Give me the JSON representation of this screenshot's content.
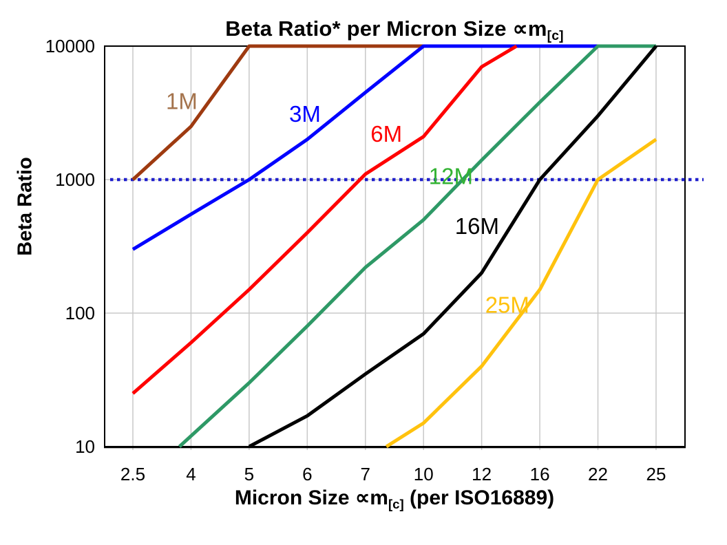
{
  "chart_data": {
    "type": "line",
    "title": {
      "main": "Beta Ratio* per Micron Size ∝m",
      "sub": "[c]"
    },
    "xlabel": {
      "pre": "Micron Size ∝m",
      "sub": "[c]",
      "post": " (per ISO16889)"
    },
    "ylabel": "Beta Ratio",
    "x_categories": [
      "2.5",
      "4",
      "5",
      "6",
      "7",
      "10",
      "12",
      "16",
      "22",
      "25"
    ],
    "y_scale": "log",
    "ylim": [
      10,
      10000
    ],
    "y_ticks": [
      10,
      100,
      1000,
      10000
    ],
    "grid": {
      "color": "#C8C8C8",
      "vertical": true,
      "horizontal_decades": [
        100,
        1000
      ]
    },
    "axis_color": "#000000",
    "reference_line": {
      "value": 1000,
      "color": "#2020CC",
      "style": "dotted"
    },
    "legend_position": "inline-labels",
    "series": [
      {
        "name": "1M",
        "color": "#9E3A10",
        "label_color": "#A4734C",
        "label_at": {
          "x": 0.84,
          "value": 3870
        },
        "points": [
          [
            0,
            1000
          ],
          [
            1,
            2500
          ],
          [
            2,
            10000
          ],
          [
            3,
            10000
          ],
          [
            4,
            10000
          ],
          [
            5,
            10000
          ]
        ]
      },
      {
        "name": "3M",
        "color": "#0000FF",
        "label_color": "#0000FF",
        "label_at": {
          "x": 2.96,
          "value": 3100
        },
        "points": [
          [
            0,
            300
          ],
          [
            1,
            550
          ],
          [
            2,
            1000
          ],
          [
            3,
            2000
          ],
          [
            4,
            4500
          ],
          [
            5,
            10000
          ],
          [
            6,
            10000
          ],
          [
            7,
            10000
          ],
          [
            8,
            10000
          ]
        ]
      },
      {
        "name": "6M",
        "color": "#FF0000",
        "label_color": "#FF0000",
        "label_at": {
          "x": 4.36,
          "value": 2200
        },
        "points": [
          [
            0,
            25
          ],
          [
            1,
            60
          ],
          [
            2,
            150
          ],
          [
            3,
            400
          ],
          [
            4,
            1100
          ],
          [
            5,
            2100
          ],
          [
            6,
            7000
          ],
          [
            6.6,
            10000
          ]
        ]
      },
      {
        "name": "12M",
        "color": "#2E9966",
        "label_color": "#33B333",
        "label_at": {
          "x": 5.47,
          "value": 1060
        },
        "points": [
          [
            0.8,
            10
          ],
          [
            1,
            12
          ],
          [
            2,
            30
          ],
          [
            3,
            80
          ],
          [
            4,
            220
          ],
          [
            5,
            500
          ],
          [
            6,
            1400
          ],
          [
            7,
            3800
          ],
          [
            8,
            10000
          ],
          [
            9,
            10000
          ]
        ]
      },
      {
        "name": "16M",
        "color": "#000000",
        "label_color": "#000000",
        "label_at": {
          "x": 5.92,
          "value": 450
        },
        "points": [
          [
            2,
            10
          ],
          [
            3,
            17
          ],
          [
            4,
            35
          ],
          [
            5,
            70
          ],
          [
            6,
            200
          ],
          [
            7,
            1000
          ],
          [
            8,
            3000
          ],
          [
            9,
            10000
          ]
        ]
      },
      {
        "name": "25M",
        "color": "#FFC20E",
        "label_color": "#FFC20E",
        "label_at": {
          "x": 6.44,
          "value": 115
        },
        "points": [
          [
            4.36,
            10
          ],
          [
            5,
            15
          ],
          [
            6,
            40
          ],
          [
            7,
            150
          ],
          [
            8,
            1000
          ],
          [
            9,
            2000
          ]
        ]
      }
    ]
  }
}
